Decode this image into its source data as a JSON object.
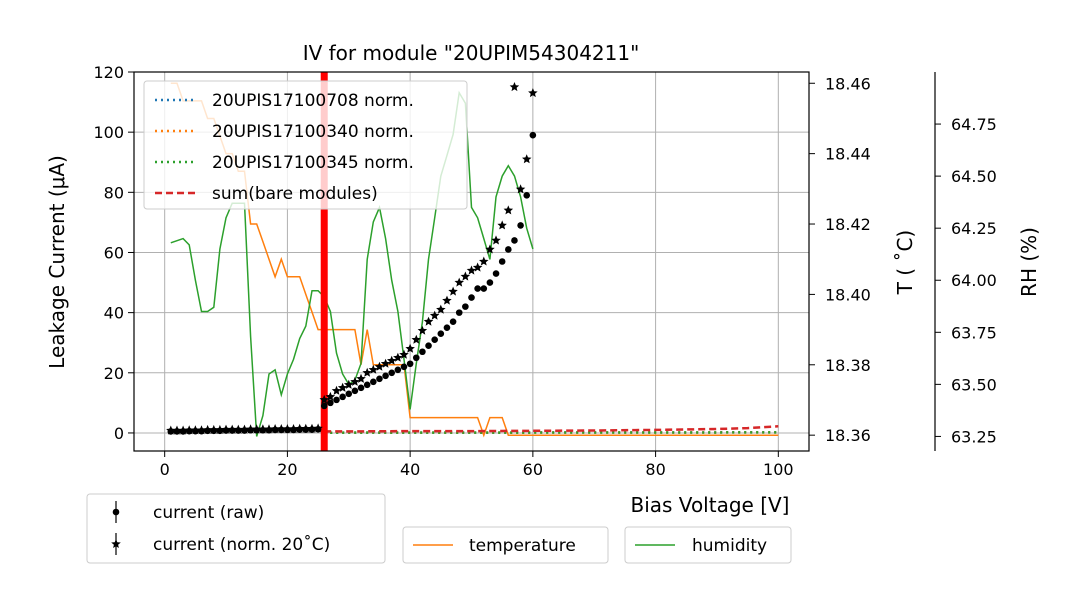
{
  "chart_data": {
    "type": "scatter",
    "title": "IV for module \"20UPIM54304211\"",
    "xlabel": "Bias Voltage [V]",
    "ylabel": "Leakage Current (μA)",
    "xlim": [
      -5,
      105
    ],
    "ylim": [
      -6,
      120
    ],
    "xticks": [
      "0",
      "20",
      "40",
      "60",
      "80",
      "100"
    ],
    "yticks": [
      "0",
      "20",
      "40",
      "60",
      "80",
      "100",
      "120"
    ],
    "grid": true,
    "temperature_axis": {
      "label": "T ( ˚C)",
      "lim": [
        18.3555,
        18.4632
      ],
      "ticks": [
        "18.36",
        "18.38",
        "18.40",
        "18.42",
        "18.44",
        "18.46"
      ],
      "color": "#ff7f0e"
    },
    "humidity_axis": {
      "label": "RH (%)",
      "lim": [
        63.18,
        65.0
      ],
      "ticks": [
        "63.25",
        "63.50",
        "63.75",
        "64.00",
        "64.25",
        "64.50",
        "64.75"
      ],
      "color": "#2ca02c"
    },
    "breakdown_line": {
      "x": 26,
      "color": "#ff0000"
    },
    "series": [
      {
        "name": "current (raw)",
        "marker": "circle",
        "color": "#000000",
        "x": [
          1,
          2,
          3,
          4,
          5,
          6,
          7,
          8,
          9,
          10,
          11,
          12,
          13,
          14,
          15,
          16,
          17,
          18,
          19,
          20,
          21,
          22,
          23,
          24,
          25,
          26,
          27,
          28,
          29,
          30,
          31,
          32,
          33,
          34,
          35,
          36,
          37,
          38,
          39,
          40,
          41,
          42,
          43,
          44,
          45,
          46,
          47,
          48,
          49,
          50,
          51,
          52,
          53,
          54,
          55,
          56,
          57,
          58,
          59,
          60
        ],
        "y": [
          0.5,
          0.5,
          0.5,
          0.6,
          0.6,
          0.6,
          0.7,
          0.7,
          0.7,
          0.8,
          0.8,
          0.8,
          0.8,
          0.9,
          0.9,
          0.9,
          0.9,
          1.0,
          1.0,
          1.0,
          1.0,
          1.1,
          1.1,
          1.1,
          1.2,
          9,
          10,
          11,
          12,
          13,
          14,
          15,
          16,
          17,
          18,
          19,
          20,
          21,
          22,
          23,
          25,
          27,
          29,
          31,
          33,
          35,
          37,
          40,
          42,
          45,
          48,
          48,
          50,
          53,
          57,
          61,
          64,
          69,
          79,
          99
        ]
      },
      {
        "name": "current (norm. 20˚C)",
        "marker": "star",
        "color": "#000000",
        "x": [
          1,
          2,
          3,
          4,
          5,
          6,
          7,
          8,
          9,
          10,
          11,
          12,
          13,
          14,
          15,
          16,
          17,
          18,
          19,
          20,
          21,
          22,
          23,
          24,
          25,
          26,
          27,
          28,
          29,
          30,
          31,
          32,
          33,
          34,
          35,
          36,
          37,
          38,
          39,
          40,
          41,
          42,
          43,
          44,
          45,
          46,
          47,
          48,
          49,
          50,
          51,
          52,
          53,
          54,
          55,
          56,
          57,
          58,
          59,
          60
        ],
        "y": [
          0.8,
          0.8,
          0.8,
          0.9,
          0.9,
          0.9,
          1.0,
          1.0,
          1.0,
          1.1,
          1.1,
          1.1,
          1.1,
          1.2,
          1.2,
          1.2,
          1.2,
          1.3,
          1.3,
          1.3,
          1.3,
          1.4,
          1.4,
          1.4,
          1.5,
          11,
          12,
          14,
          15,
          16,
          17,
          18,
          20,
          21,
          22,
          23,
          24,
          25,
          26,
          28,
          31,
          34,
          37,
          39,
          41,
          44,
          47,
          50,
          52,
          54,
          55,
          57,
          61,
          64,
          69,
          74,
          115,
          81,
          91,
          113
        ]
      },
      {
        "name": "20UPIS17100708 norm.",
        "style": "dotted",
        "color": "#1f77b4",
        "x": [
          26,
          100
        ],
        "y": [
          0.1,
          0.2
        ]
      },
      {
        "name": "20UPIS17100340 norm.",
        "style": "dotted",
        "color": "#ff7f0e",
        "x": [
          26,
          100
        ],
        "y": [
          0.1,
          0.2
        ]
      },
      {
        "name": "20UPIS17100345 norm.",
        "style": "dotted",
        "color": "#2ca02c",
        "x": [
          26,
          100
        ],
        "y": [
          0.1,
          0.2
        ]
      },
      {
        "name": "sum(bare modules)",
        "style": "dashed",
        "color": "#d62728",
        "x": [
          26,
          30,
          40,
          50,
          60,
          70,
          80,
          90,
          95,
          100
        ],
        "y": [
          0.5,
          0.5,
          0.6,
          0.6,
          0.7,
          0.8,
          1.0,
          1.3,
          1.6,
          2.2
        ]
      },
      {
        "name": "temperature",
        "style": "solid",
        "color": "#ff7f0e",
        "axis": "temperature",
        "x": [
          1,
          2,
          3,
          4,
          5,
          6,
          7,
          8,
          9,
          10,
          11,
          12,
          13,
          14,
          15,
          16,
          17,
          18,
          19,
          20,
          21,
          22,
          23,
          24,
          25,
          26,
          27,
          28,
          29,
          30,
          31,
          32,
          33,
          34,
          35,
          36,
          37,
          38,
          39,
          40,
          41,
          42,
          43,
          44,
          45,
          46,
          47,
          48,
          49,
          50,
          51,
          52,
          53,
          54,
          55,
          56,
          57,
          58,
          59,
          60,
          70,
          80,
          90,
          100
        ],
        "y": [
          18.46,
          18.46,
          18.455,
          18.455,
          18.455,
          18.455,
          18.45,
          18.45,
          18.445,
          18.44,
          18.44,
          18.435,
          18.435,
          18.42,
          18.42,
          18.415,
          18.41,
          18.405,
          18.41,
          18.405,
          18.405,
          18.405,
          18.4,
          18.395,
          18.39,
          18.39,
          18.39,
          18.39,
          18.39,
          18.39,
          18.39,
          18.38,
          18.39,
          18.38,
          18.38,
          18.38,
          18.38,
          18.38,
          18.38,
          18.365,
          18.365,
          18.365,
          18.365,
          18.365,
          18.365,
          18.365,
          18.365,
          18.365,
          18.365,
          18.365,
          18.365,
          18.36,
          18.365,
          18.365,
          18.365,
          18.36,
          18.36,
          18.36,
          18.36,
          18.36,
          18.36,
          18.36,
          18.36,
          18.36
        ]
      },
      {
        "name": "humidity",
        "style": "solid",
        "color": "#2ca02c",
        "axis": "humidity",
        "x": [
          1,
          2,
          3,
          4,
          5,
          6,
          7,
          8,
          9,
          10,
          11,
          12,
          13,
          14,
          15,
          16,
          17,
          18,
          19,
          20,
          21,
          22,
          23,
          24,
          25,
          26,
          27,
          28,
          29,
          30,
          31,
          32,
          33,
          34,
          35,
          36,
          37,
          38,
          39,
          40,
          41,
          42,
          43,
          44,
          45,
          46,
          47,
          48,
          49,
          50,
          51,
          52,
          53,
          54,
          55,
          56,
          57,
          58,
          59,
          60
        ],
        "y": [
          64.18,
          64.19,
          64.2,
          64.17,
          64.0,
          63.85,
          63.85,
          63.87,
          64.15,
          64.3,
          64.37,
          64.37,
          64.37,
          63.73,
          63.25,
          63.35,
          63.55,
          63.57,
          63.45,
          63.55,
          63.62,
          63.72,
          63.78,
          63.95,
          63.95,
          63.92,
          63.85,
          63.65,
          63.55,
          63.5,
          63.52,
          63.6,
          64.1,
          64.28,
          64.35,
          64.2,
          64.0,
          63.85,
          63.62,
          63.38,
          63.6,
          63.8,
          64.1,
          64.3,
          64.5,
          64.6,
          64.7,
          64.9,
          64.85,
          64.35,
          64.3,
          64.2,
          64.1,
          64.4,
          64.5,
          64.55,
          64.5,
          64.4,
          64.25,
          64.15
        ]
      }
    ],
    "legend_upper": {
      "placement": "upper-left",
      "entries": [
        "20UPIS17100708 norm.",
        "20UPIS17100340 norm.",
        "20UPIS17100345 norm.",
        "sum(bare modules)"
      ]
    },
    "legend_bottom": {
      "placement": "below",
      "entries": [
        "current (raw)",
        "current (norm. 20˚C)",
        "temperature",
        "humidity"
      ]
    }
  }
}
